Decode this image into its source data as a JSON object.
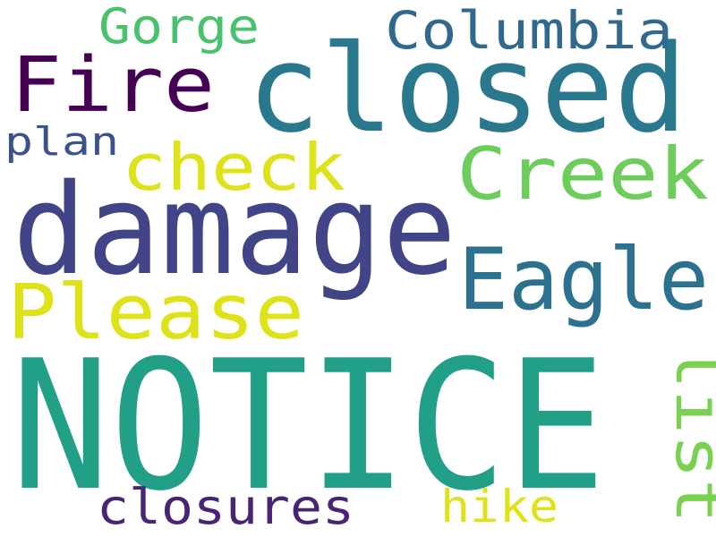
{
  "words": [
    {
      "text": "NOTICE",
      "color": "#21a087",
      "orientation": "horizontal"
    },
    {
      "text": "damage",
      "color": "#414487",
      "orientation": "horizontal"
    },
    {
      "text": "closed",
      "color": "#2a788e",
      "orientation": "horizontal"
    },
    {
      "text": "Eagle",
      "color": "#2c728e",
      "orientation": "horizontal"
    },
    {
      "text": "Please",
      "color": "#dde318",
      "orientation": "horizontal"
    },
    {
      "text": "Creek",
      "color": "#6ccd5a",
      "orientation": "horizontal"
    },
    {
      "text": "Fire",
      "color": "#440154",
      "orientation": "horizontal"
    },
    {
      "text": "check",
      "color": "#dde318",
      "orientation": "horizontal"
    },
    {
      "text": "Columbia",
      "color": "#31688e",
      "orientation": "horizontal"
    },
    {
      "text": "list",
      "color": "#7ad151",
      "orientation": "vertical"
    },
    {
      "text": "closures",
      "color": "#482475",
      "orientation": "horizontal"
    },
    {
      "text": "Gorge",
      "color": "#4ac16d",
      "orientation": "horizontal"
    },
    {
      "text": "hike",
      "color": "#dde318",
      "orientation": "horizontal"
    },
    {
      "text": "plan",
      "color": "#3b528b",
      "orientation": "horizontal"
    }
  ]
}
